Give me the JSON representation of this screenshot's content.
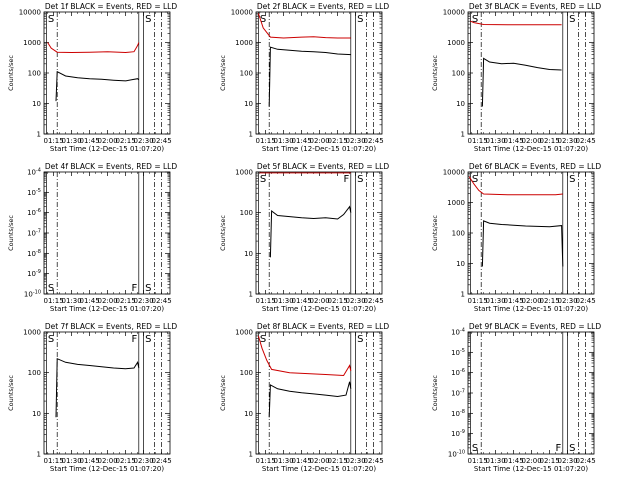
{
  "figure": {
    "start_time_label": "Start Time (12-Dec-15 01:07:20)",
    "ylabel": "Counts/sec",
    "x_ticks": [
      "01:15",
      "01:30",
      "01:45",
      "02:00",
      "02:15",
      "02:30",
      "02:45"
    ],
    "colors": {
      "events": "#000000",
      "lld": "#cc0000"
    }
  },
  "chart_data": [
    {
      "type": "line",
      "title": "Det 1f BLACK = Events, RED = LLD",
      "xlabel": "Start Time (12-Dec-15 01:07:20)",
      "ylabel": "Counts/sec",
      "xlim": [
        "01:07",
        "02:52"
      ],
      "yscale": "log",
      "ylim": [
        1,
        10000
      ],
      "y_ticks": [
        "1",
        "10",
        "100",
        "1000",
        "10000"
      ],
      "markers": [
        {
          "label": "S",
          "time": "01:09",
          "style": "solid"
        },
        {
          "label": "",
          "time": "01:18",
          "style": "dashdot"
        },
        {
          "label": "",
          "time": "02:26",
          "style": "solid"
        },
        {
          "label": "S",
          "time": "02:30",
          "style": "solid"
        },
        {
          "label": "",
          "time": "02:39",
          "style": "dashdot"
        },
        {
          "label": "",
          "time": "02:45",
          "style": "dashdot"
        }
      ],
      "series": [
        {
          "name": "BLACK = Events",
          "color": "#000000",
          "x": [
            "01:17",
            "01:18",
            "01:25",
            "01:35",
            "01:45",
            "01:55",
            "02:05",
            "02:15",
            "02:20",
            "02:25",
            "02:26"
          ],
          "y": [
            12,
            110,
            80,
            70,
            65,
            62,
            58,
            55,
            60,
            65,
            60
          ]
        },
        {
          "name": "RED = LLD",
          "color": "#cc0000",
          "x": [
            "01:10",
            "01:13",
            "01:18",
            "01:30",
            "01:45",
            "02:00",
            "02:15",
            "02:22",
            "02:25",
            "02:26"
          ],
          "y": [
            1000,
            650,
            480,
            470,
            480,
            500,
            470,
            500,
            800,
            1000
          ]
        }
      ]
    },
    {
      "type": "line",
      "title": "Det 2f BLACK = Events, RED = LLD",
      "xlabel": "Start Time (12-Dec-15 01:07:20)",
      "ylabel": "Counts/sec",
      "xlim": [
        "01:07",
        "02:52"
      ],
      "yscale": "log",
      "ylim": [
        1,
        10000
      ],
      "y_ticks": [
        "1",
        "10",
        "100",
        "1000",
        "10000"
      ],
      "markers": [
        {
          "label": "S",
          "time": "01:09",
          "style": "solid"
        },
        {
          "label": "",
          "time": "01:18",
          "style": "dashdot"
        },
        {
          "label": "",
          "time": "02:26",
          "style": "solid"
        },
        {
          "label": "S",
          "time": "02:30",
          "style": "solid"
        },
        {
          "label": "",
          "time": "02:39",
          "style": "dashdot"
        },
        {
          "label": "",
          "time": "02:45",
          "style": "dashdot"
        }
      ],
      "series": [
        {
          "name": "BLACK = Events",
          "color": "#000000",
          "x": [
            "01:18",
            "01:19",
            "01:25",
            "01:35",
            "01:45",
            "01:55",
            "02:05",
            "02:15",
            "02:26"
          ],
          "y": [
            8,
            700,
            600,
            560,
            520,
            500,
            470,
            420,
            400
          ]
        },
        {
          "name": "RED = LLD",
          "color": "#cc0000",
          "x": [
            "01:09",
            "01:13",
            "01:19",
            "01:30",
            "01:45",
            "01:55",
            "02:05",
            "02:15",
            "02:26"
          ],
          "y": [
            9000,
            3000,
            1500,
            1400,
            1500,
            1550,
            1450,
            1400,
            1400
          ]
        }
      ]
    },
    {
      "type": "line",
      "title": "Det 3f BLACK = Events, RED = LLD",
      "xlabel": "Start Time (12-Dec-15 01:07:20)",
      "ylabel": "Counts/sec",
      "xlim": [
        "01:07",
        "02:52"
      ],
      "yscale": "log",
      "ylim": [
        1,
        10000
      ],
      "y_ticks": [
        "1",
        "10",
        "100",
        "1000",
        "10000"
      ],
      "markers": [
        {
          "label": "S",
          "time": "01:09",
          "style": "solid"
        },
        {
          "label": "",
          "time": "01:18",
          "style": "dashdot"
        },
        {
          "label": "",
          "time": "02:26",
          "style": "solid"
        },
        {
          "label": "S",
          "time": "02:30",
          "style": "solid"
        },
        {
          "label": "",
          "time": "02:39",
          "style": "dashdot"
        },
        {
          "label": "",
          "time": "02:45",
          "style": "dashdot"
        }
      ],
      "series": [
        {
          "name": "BLACK = Events",
          "color": "#000000",
          "x": [
            "01:19",
            "01:20",
            "01:25",
            "01:35",
            "01:45",
            "01:55",
            "02:05",
            "02:15",
            "02:25"
          ],
          "y": [
            8,
            300,
            230,
            200,
            210,
            180,
            150,
            130,
            125
          ]
        },
        {
          "name": "RED = LLD",
          "color": "#cc0000",
          "x": [
            "01:09",
            "01:12",
            "01:20",
            "01:40",
            "02:00",
            "02:20",
            "02:25"
          ],
          "y": [
            5000,
            4500,
            3900,
            3800,
            3800,
            3800,
            3800
          ]
        }
      ]
    },
    {
      "type": "line",
      "title": "Det 4f BLACK = Events, RED = LLD",
      "xlabel": "Start Time (12-Dec-15 01:07:20)",
      "ylabel": "Counts/sec",
      "xlim": [
        "01:07",
        "02:52"
      ],
      "yscale": "log",
      "ylim": [
        1e-10,
        0.0001
      ],
      "y_ticks": [
        "10^-10",
        "10^-9",
        "10^-8",
        "10^-7",
        "10^-6",
        "10^-5",
        "10^-4"
      ],
      "markers": [
        {
          "label": "S",
          "time": "01:09",
          "style": "solid"
        },
        {
          "label": "",
          "time": "01:18",
          "style": "dashdot"
        },
        {
          "label": "F",
          "time": "02:26",
          "style": "solid"
        },
        {
          "label": "S",
          "time": "02:30",
          "style": "solid"
        },
        {
          "label": "",
          "time": "02:39",
          "style": "dashdot"
        },
        {
          "label": "",
          "time": "02:45",
          "style": "dashdot"
        }
      ],
      "series": []
    },
    {
      "type": "line",
      "title": "Det 5f BLACK = Events, RED = LLD",
      "xlabel": "Start Time (12-Dec-15 01:07:20)",
      "ylabel": "Counts/sec",
      "xlim": [
        "01:07",
        "02:52"
      ],
      "yscale": "log",
      "ylim": [
        1,
        1000
      ],
      "y_ticks": [
        "1",
        "10",
        "100",
        "1000"
      ],
      "markers": [
        {
          "label": "S",
          "time": "01:09",
          "style": "solid"
        },
        {
          "label": "",
          "time": "01:18",
          "style": "dashdot"
        },
        {
          "label": "F",
          "time": "02:26",
          "style": "solid"
        },
        {
          "label": "S",
          "time": "02:30",
          "style": "solid"
        },
        {
          "label": "",
          "time": "02:39",
          "style": "dashdot"
        },
        {
          "label": "",
          "time": "02:45",
          "style": "dashdot"
        }
      ],
      "series": [
        {
          "name": "BLACK = Events",
          "color": "#000000",
          "x": [
            "01:19",
            "01:20",
            "01:25",
            "01:35",
            "01:45",
            "01:55",
            "02:05",
            "02:15",
            "02:20",
            "02:25",
            "02:26"
          ],
          "y": [
            8,
            110,
            85,
            80,
            75,
            72,
            75,
            70,
            90,
            140,
            100
          ]
        },
        {
          "name": "RED = LLD",
          "color": "#cc0000",
          "x": [
            "01:10",
            "01:20",
            "01:40",
            "02:00",
            "02:20",
            "02:26"
          ],
          "y": [
            950,
            950,
            950,
            950,
            950,
            950
          ]
        }
      ]
    },
    {
      "type": "line",
      "title": "Det 6f BLACK = Events, RED = LLD",
      "xlabel": "Start Time (12-Dec-15 01:07:20)",
      "ylabel": "Counts/sec",
      "xlim": [
        "01:07",
        "02:52"
      ],
      "yscale": "log",
      "ylim": [
        1,
        10000
      ],
      "y_ticks": [
        "1",
        "10",
        "100",
        "1000",
        "10000"
      ],
      "markers": [
        {
          "label": "S",
          "time": "01:09",
          "style": "solid"
        },
        {
          "label": "",
          "time": "01:18",
          "style": "dashdot"
        },
        {
          "label": "",
          "time": "02:26",
          "style": "solid"
        },
        {
          "label": "S",
          "time": "02:30",
          "style": "solid"
        },
        {
          "label": "",
          "time": "02:39",
          "style": "dashdot"
        },
        {
          "label": "",
          "time": "02:45",
          "style": "dashdot"
        }
      ],
      "series": [
        {
          "name": "BLACK = Events",
          "color": "#000000",
          "x": [
            "01:19",
            "01:20",
            "01:25",
            "01:35",
            "01:45",
            "01:55",
            "02:05",
            "02:15",
            "02:25",
            "02:26"
          ],
          "y": [
            8,
            250,
            210,
            190,
            180,
            170,
            165,
            160,
            175,
            8
          ]
        },
        {
          "name": "RED = LLD",
          "color": "#cc0000",
          "x": [
            "01:08",
            "01:12",
            "01:16",
            "01:20",
            "01:40",
            "02:00",
            "02:20",
            "02:26"
          ],
          "y": [
            7000,
            4000,
            2500,
            1900,
            1800,
            1800,
            1800,
            1900
          ]
        }
      ]
    },
    {
      "type": "line",
      "title": "Det 7f BLACK = Events, RED = LLD",
      "xlabel": "Start Time (12-Dec-15 01:07:20)",
      "ylabel": "Counts/sec",
      "xlim": [
        "01:07",
        "02:52"
      ],
      "yscale": "log",
      "ylim": [
        1,
        1000
      ],
      "y_ticks": [
        "1",
        "10",
        "100",
        "1000"
      ],
      "markers": [
        {
          "label": "S",
          "time": "01:09",
          "style": "solid"
        },
        {
          "label": "",
          "time": "01:18",
          "style": "dashdot"
        },
        {
          "label": "F",
          "time": "02:26",
          "style": "solid"
        },
        {
          "label": "S",
          "time": "02:30",
          "style": "solid"
        },
        {
          "label": "",
          "time": "02:39",
          "style": "dashdot"
        },
        {
          "label": "",
          "time": "02:45",
          "style": "dashdot"
        }
      ],
      "series": [
        {
          "name": "BLACK = Events",
          "color": "#000000",
          "x": [
            "01:17",
            "01:18",
            "01:25",
            "01:35",
            "01:45",
            "01:55",
            "02:05",
            "02:15",
            "02:22",
            "02:25",
            "02:26"
          ],
          "y": [
            8,
            220,
            180,
            160,
            150,
            140,
            130,
            125,
            130,
            180,
            130
          ]
        }
      ]
    },
    {
      "type": "line",
      "title": "Det 8f BLACK = Events, RED = LLD",
      "xlabel": "Start Time (12-Dec-15 01:07:20)",
      "ylabel": "Counts/sec",
      "xlim": [
        "01:07",
        "02:52"
      ],
      "yscale": "log",
      "ylim": [
        1,
        1000
      ],
      "y_ticks": [
        "1",
        "10",
        "100",
        "1000"
      ],
      "markers": [
        {
          "label": "S",
          "time": "01:09",
          "style": "solid"
        },
        {
          "label": "",
          "time": "01:18",
          "style": "dashdot"
        },
        {
          "label": "",
          "time": "02:26",
          "style": "solid"
        },
        {
          "label": "S",
          "time": "02:30",
          "style": "solid"
        },
        {
          "label": "",
          "time": "02:39",
          "style": "dashdot"
        },
        {
          "label": "",
          "time": "02:45",
          "style": "dashdot"
        }
      ],
      "series": [
        {
          "name": "BLACK = Events",
          "color": "#000000",
          "x": [
            "01:18",
            "01:19",
            "01:25",
            "01:35",
            "01:45",
            "01:55",
            "02:05",
            "02:15",
            "02:22",
            "02:25",
            "02:26"
          ],
          "y": [
            8,
            50,
            40,
            35,
            32,
            30,
            28,
            26,
            28,
            60,
            40
          ]
        },
        {
          "name": "RED = LLD",
          "color": "#cc0000",
          "x": [
            "01:09",
            "01:12",
            "01:16",
            "01:20",
            "01:35",
            "01:50",
            "02:05",
            "02:20",
            "02:25",
            "02:26"
          ],
          "y": [
            800,
            400,
            200,
            120,
            100,
            95,
            90,
            85,
            150,
            110
          ]
        }
      ]
    },
    {
      "type": "line",
      "title": "Det 9f BLACK = Events, RED = LLD",
      "xlabel": "Start Time (12-Dec-15 01:07:20)",
      "ylabel": "Counts/sec",
      "xlim": [
        "01:07",
        "02:52"
      ],
      "yscale": "log",
      "ylim": [
        1e-10,
        0.0001
      ],
      "y_ticks": [
        "10^-10",
        "10^-9",
        "10^-8",
        "10^-7",
        "10^-6",
        "10^-5",
        "10^-4"
      ],
      "markers": [
        {
          "label": "S",
          "time": "01:09",
          "style": "solid"
        },
        {
          "label": "",
          "time": "01:18",
          "style": "dashdot"
        },
        {
          "label": "F",
          "time": "02:26",
          "style": "solid"
        },
        {
          "label": "S",
          "time": "02:30",
          "style": "solid"
        },
        {
          "label": "",
          "time": "02:39",
          "style": "dashdot"
        },
        {
          "label": "",
          "time": "02:45",
          "style": "dashdot"
        }
      ],
      "series": []
    }
  ]
}
